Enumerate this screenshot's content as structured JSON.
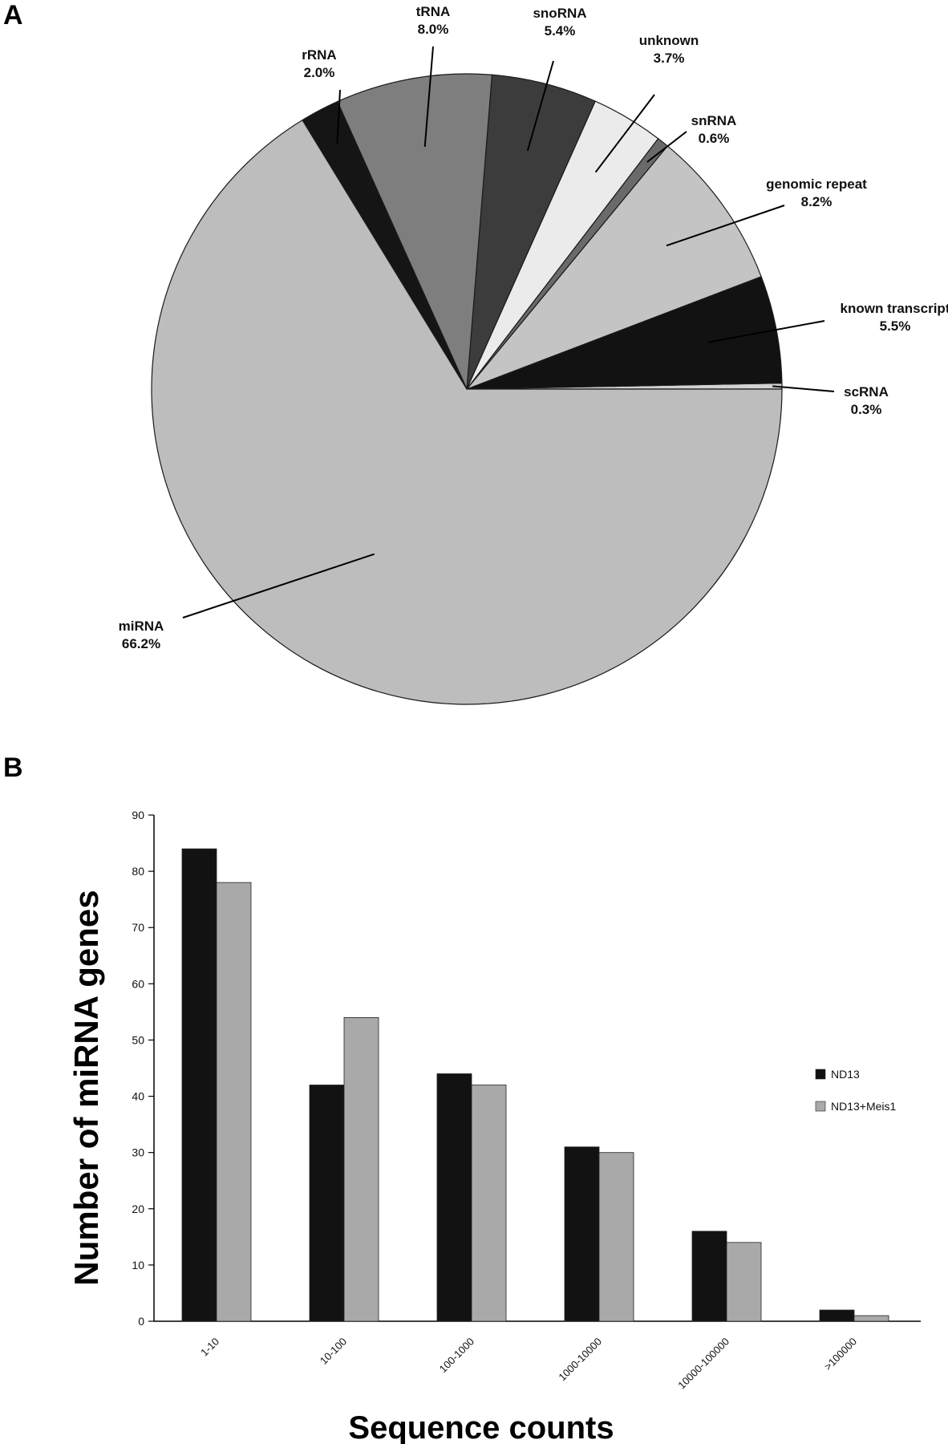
{
  "panels": {
    "a": "A",
    "b": "B"
  },
  "chart_data": [
    {
      "type": "pie",
      "panel": "A",
      "title": "",
      "slices": [
        {
          "name": "scRNA",
          "value": 0.3,
          "label": "0.3%",
          "color": "#d2d2d2"
        },
        {
          "name": "known transcript",
          "value": 5.5,
          "label": "5.5%",
          "color": "#121212"
        },
        {
          "name": "genomic repeat",
          "value": 8.2,
          "label": "8.2%",
          "color": "#c4c4c4"
        },
        {
          "name": "snRNA",
          "value": 0.6,
          "label": "0.6%",
          "color": "#6a6a6a"
        },
        {
          "name": "unknown",
          "value": 3.7,
          "label": "3.7%",
          "color": "#ebebeb"
        },
        {
          "name": "snoRNA",
          "value": 5.4,
          "label": "5.4%",
          "color": "#3c3c3c"
        },
        {
          "name": "tRNA",
          "value": 8.0,
          "label": "8.0%",
          "color": "#7e7e7e"
        },
        {
          "name": "rRNA",
          "value": 2.0,
          "label": "2.0%",
          "color": "#151515"
        },
        {
          "name": "miRNA",
          "value": 66.2,
          "label": "66.2%",
          "color": "#bdbdbd"
        }
      ]
    },
    {
      "type": "bar",
      "panel": "B",
      "title": "",
      "xlabel": "Sequence counts",
      "ylabel": "Number of miRNA genes",
      "categories": [
        "1-10",
        "10-100",
        "100-1000",
        "1000-10000",
        "10000-100000",
        ">100000"
      ],
      "series": [
        {
          "name": "ND13",
          "values": [
            84,
            42,
            44,
            31,
            16,
            2
          ],
          "color": "#121212"
        },
        {
          "name": "ND13+Meis1",
          "values": [
            78,
            54,
            42,
            30,
            14,
            1
          ],
          "color": "#a9a9a9"
        }
      ],
      "ylim": [
        0,
        90
      ],
      "yticks": [
        0,
        10,
        20,
        30,
        40,
        50,
        60,
        70,
        80,
        90
      ],
      "grid": false,
      "legend": "right"
    }
  ]
}
